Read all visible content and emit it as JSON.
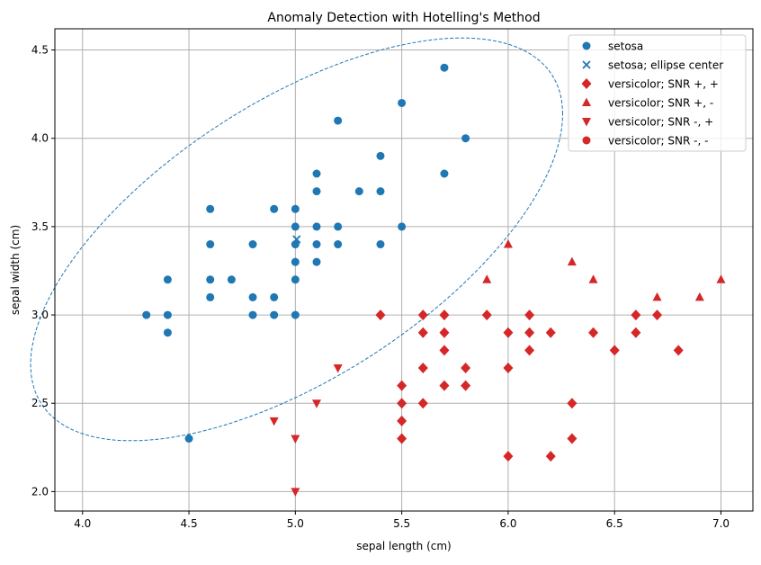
{
  "chart_data": {
    "type": "scatter",
    "title": "Anomaly Detection with Hotelling's Method",
    "xlabel": "sepal length (cm)",
    "ylabel": "sepal width (cm)",
    "xlim": [
      3.87,
      7.15
    ],
    "ylim": [
      1.89,
      4.62
    ],
    "xticks": [
      "4.0",
      "4.5",
      "5.0",
      "5.5",
      "6.0",
      "6.5",
      "7.0"
    ],
    "yticks": [
      "2.0",
      "2.5",
      "3.0",
      "3.5",
      "4.0",
      "4.5"
    ],
    "grid": true,
    "legend_position": "top-right",
    "colors": {
      "blue": "#1f77b4",
      "red": "#d62728"
    },
    "series": [
      {
        "name": "setosa",
        "marker": "circle",
        "color": "#1f77b4",
        "points": [
          [
            4.3,
            3.0
          ],
          [
            4.4,
            3.2
          ],
          [
            4.4,
            3.0
          ],
          [
            4.4,
            2.9
          ],
          [
            4.5,
            2.3
          ],
          [
            4.6,
            3.6
          ],
          [
            4.6,
            3.4
          ],
          [
            4.6,
            3.2
          ],
          [
            4.6,
            3.1
          ],
          [
            4.7,
            3.2
          ],
          [
            4.8,
            3.4
          ],
          [
            4.8,
            3.1
          ],
          [
            4.8,
            3.0
          ],
          [
            4.9,
            3.6
          ],
          [
            4.9,
            3.1
          ],
          [
            4.9,
            3.0
          ],
          [
            5.0,
            3.6
          ],
          [
            5.0,
            3.5
          ],
          [
            5.0,
            3.4
          ],
          [
            5.0,
            3.3
          ],
          [
            5.0,
            3.2
          ],
          [
            5.0,
            3.0
          ],
          [
            5.1,
            3.8
          ],
          [
            5.1,
            3.7
          ],
          [
            5.1,
            3.5
          ],
          [
            5.1,
            3.4
          ],
          [
            5.1,
            3.3
          ],
          [
            5.2,
            4.1
          ],
          [
            5.2,
            3.5
          ],
          [
            5.2,
            3.4
          ],
          [
            5.3,
            3.7
          ],
          [
            5.4,
            3.9
          ],
          [
            5.4,
            3.7
          ],
          [
            5.4,
            3.4
          ],
          [
            5.5,
            4.2
          ],
          [
            5.5,
            3.5
          ],
          [
            5.7,
            4.4
          ],
          [
            5.7,
            3.8
          ],
          [
            5.8,
            4.0
          ]
        ]
      },
      {
        "name": "setosa; ellipse center",
        "marker": "x",
        "color": "#1f77b4",
        "points": [
          [
            5.006,
            3.428
          ]
        ]
      },
      {
        "name": "versicolor; SNR +, +",
        "marker": "diamond",
        "color": "#d62728",
        "points": [
          [
            5.4,
            3.0
          ],
          [
            5.5,
            2.6
          ],
          [
            5.5,
            2.5
          ],
          [
            5.5,
            2.4
          ],
          [
            5.5,
            2.3
          ],
          [
            5.6,
            3.0
          ],
          [
            5.6,
            2.9
          ],
          [
            5.6,
            2.7
          ],
          [
            5.6,
            2.5
          ],
          [
            5.7,
            3.0
          ],
          [
            5.7,
            2.9
          ],
          [
            5.7,
            2.8
          ],
          [
            5.7,
            2.6
          ],
          [
            5.8,
            2.7
          ],
          [
            5.8,
            2.6
          ],
          [
            5.9,
            3.0
          ],
          [
            6.0,
            2.9
          ],
          [
            6.0,
            2.7
          ],
          [
            6.0,
            2.2
          ],
          [
            6.1,
            3.0
          ],
          [
            6.1,
            2.9
          ],
          [
            6.1,
            2.8
          ],
          [
            6.2,
            2.9
          ],
          [
            6.2,
            2.2
          ],
          [
            6.3,
            2.5
          ],
          [
            6.3,
            2.3
          ],
          [
            6.4,
            2.9
          ],
          [
            6.5,
            2.8
          ],
          [
            6.6,
            3.0
          ],
          [
            6.6,
            2.9
          ],
          [
            6.7,
            3.0
          ],
          [
            6.8,
            2.8
          ]
        ]
      },
      {
        "name": "versicolor; SNR +, -",
        "marker": "triangle-up",
        "color": "#d62728",
        "points": [
          [
            5.9,
            3.2
          ],
          [
            6.0,
            3.4
          ],
          [
            6.3,
            3.3
          ],
          [
            6.4,
            3.2
          ],
          [
            6.7,
            3.1
          ],
          [
            6.9,
            3.1
          ],
          [
            7.0,
            3.2
          ]
        ]
      },
      {
        "name": "versicolor; SNR -, +",
        "marker": "triangle-down",
        "color": "#d62728",
        "points": [
          [
            4.9,
            2.4
          ],
          [
            5.0,
            2.3
          ],
          [
            5.0,
            2.0
          ],
          [
            5.1,
            2.5
          ],
          [
            5.2,
            2.7
          ]
        ]
      },
      {
        "name": "versicolor; SNR -, -",
        "marker": "circle",
        "color": "#d62728",
        "points": []
      }
    ],
    "ellipse": {
      "center": [
        5.006,
        3.428
      ],
      "x_half_range": 1.25,
      "y_half_range": 1.14,
      "phase": 0.9,
      "color": "#1f77b4",
      "style": "dashed"
    }
  }
}
